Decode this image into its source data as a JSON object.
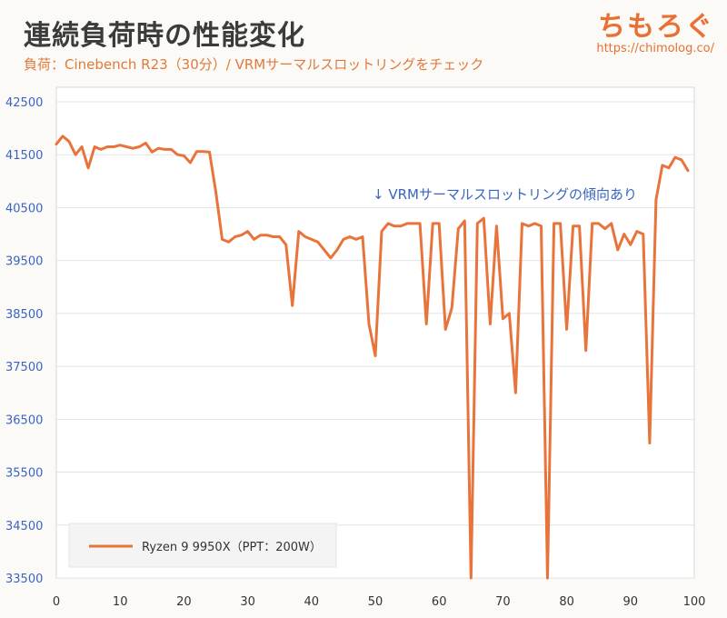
{
  "header": {
    "title": "連続負荷時の性能変化",
    "subtitle": "負荷：Cinebench R23（30分）/ VRMサーマルスロットリングをチェック"
  },
  "brand": {
    "logo": "ちもろぐ",
    "url": "https://chimolog.co/"
  },
  "colors": {
    "series": "#e8743b",
    "ytick": "#3a64c0",
    "annotation": "#3a64c0",
    "accent": "#e07a3c"
  },
  "chart_data": {
    "type": "line",
    "title": "連続負荷時の性能変化",
    "subtitle": "負荷：Cinebench R23（30分）/ VRMサーマルスロットリングをチェック",
    "xlabel": "",
    "ylabel": "",
    "xlim": [
      0,
      100
    ],
    "ylim": [
      33500,
      42500
    ],
    "xticks": [
      "0",
      "10",
      "20",
      "30",
      "40",
      "50",
      "60",
      "70",
      "80",
      "90",
      "100"
    ],
    "yticks": [
      "42500",
      "41500",
      "40500",
      "39500",
      "38500",
      "37500",
      "36500",
      "35500",
      "34500",
      "33500"
    ],
    "grid": "horizontal",
    "legend": "bottom-left",
    "annotation": "↓ VRMサーマルスロットリングの傾向あり",
    "series": [
      {
        "name": "Ryzen 9 9950X（PPT：200W）",
        "x": [
          0,
          1,
          2,
          3,
          4,
          5,
          6,
          7,
          8,
          9,
          10,
          11,
          12,
          13,
          14,
          15,
          16,
          17,
          18,
          19,
          20,
          21,
          22,
          23,
          24,
          25,
          26,
          27,
          28,
          29,
          30,
          31,
          32,
          33,
          34,
          35,
          36,
          37,
          38,
          39,
          40,
          41,
          42,
          43,
          44,
          45,
          46,
          47,
          48,
          49,
          50,
          51,
          52,
          53,
          54,
          55,
          56,
          57,
          58,
          59,
          60,
          61,
          62,
          63,
          64,
          65,
          66,
          67,
          68,
          69,
          70,
          71,
          72,
          73,
          74,
          75,
          76,
          77,
          78,
          79,
          80,
          81,
          82,
          83,
          84,
          85,
          86,
          87,
          88,
          89,
          90,
          91,
          92,
          93,
          94,
          95,
          96,
          97,
          98,
          99
        ],
        "y": [
          41700,
          41850,
          41750,
          41500,
          41650,
          41250,
          41650,
          41600,
          41650,
          41650,
          41680,
          41650,
          41620,
          41650,
          41720,
          41550,
          41620,
          41600,
          41600,
          41500,
          41480,
          41350,
          41560,
          41560,
          41550,
          40800,
          39900,
          39850,
          39950,
          39980,
          40050,
          39900,
          39980,
          39980,
          39950,
          39950,
          39800,
          38650,
          40050,
          39950,
          39900,
          39850,
          39700,
          39550,
          39700,
          39900,
          39950,
          39900,
          39950,
          38300,
          37700,
          40050,
          40200,
          40150,
          40150,
          40200,
          40200,
          40200,
          38300,
          40200,
          40200,
          38200,
          38600,
          40100,
          40250,
          33400,
          40200,
          40300,
          38300,
          40150,
          38400,
          38500,
          37000,
          40200,
          40150,
          40200,
          40150,
          33400,
          40200,
          40200,
          38200,
          40150,
          40150,
          37800,
          40200,
          40200,
          40100,
          40200,
          39700,
          40000,
          39800,
          40050,
          40000,
          36050,
          40650,
          41300,
          41250,
          41450,
          41400,
          41200
        ]
      }
    ]
  }
}
